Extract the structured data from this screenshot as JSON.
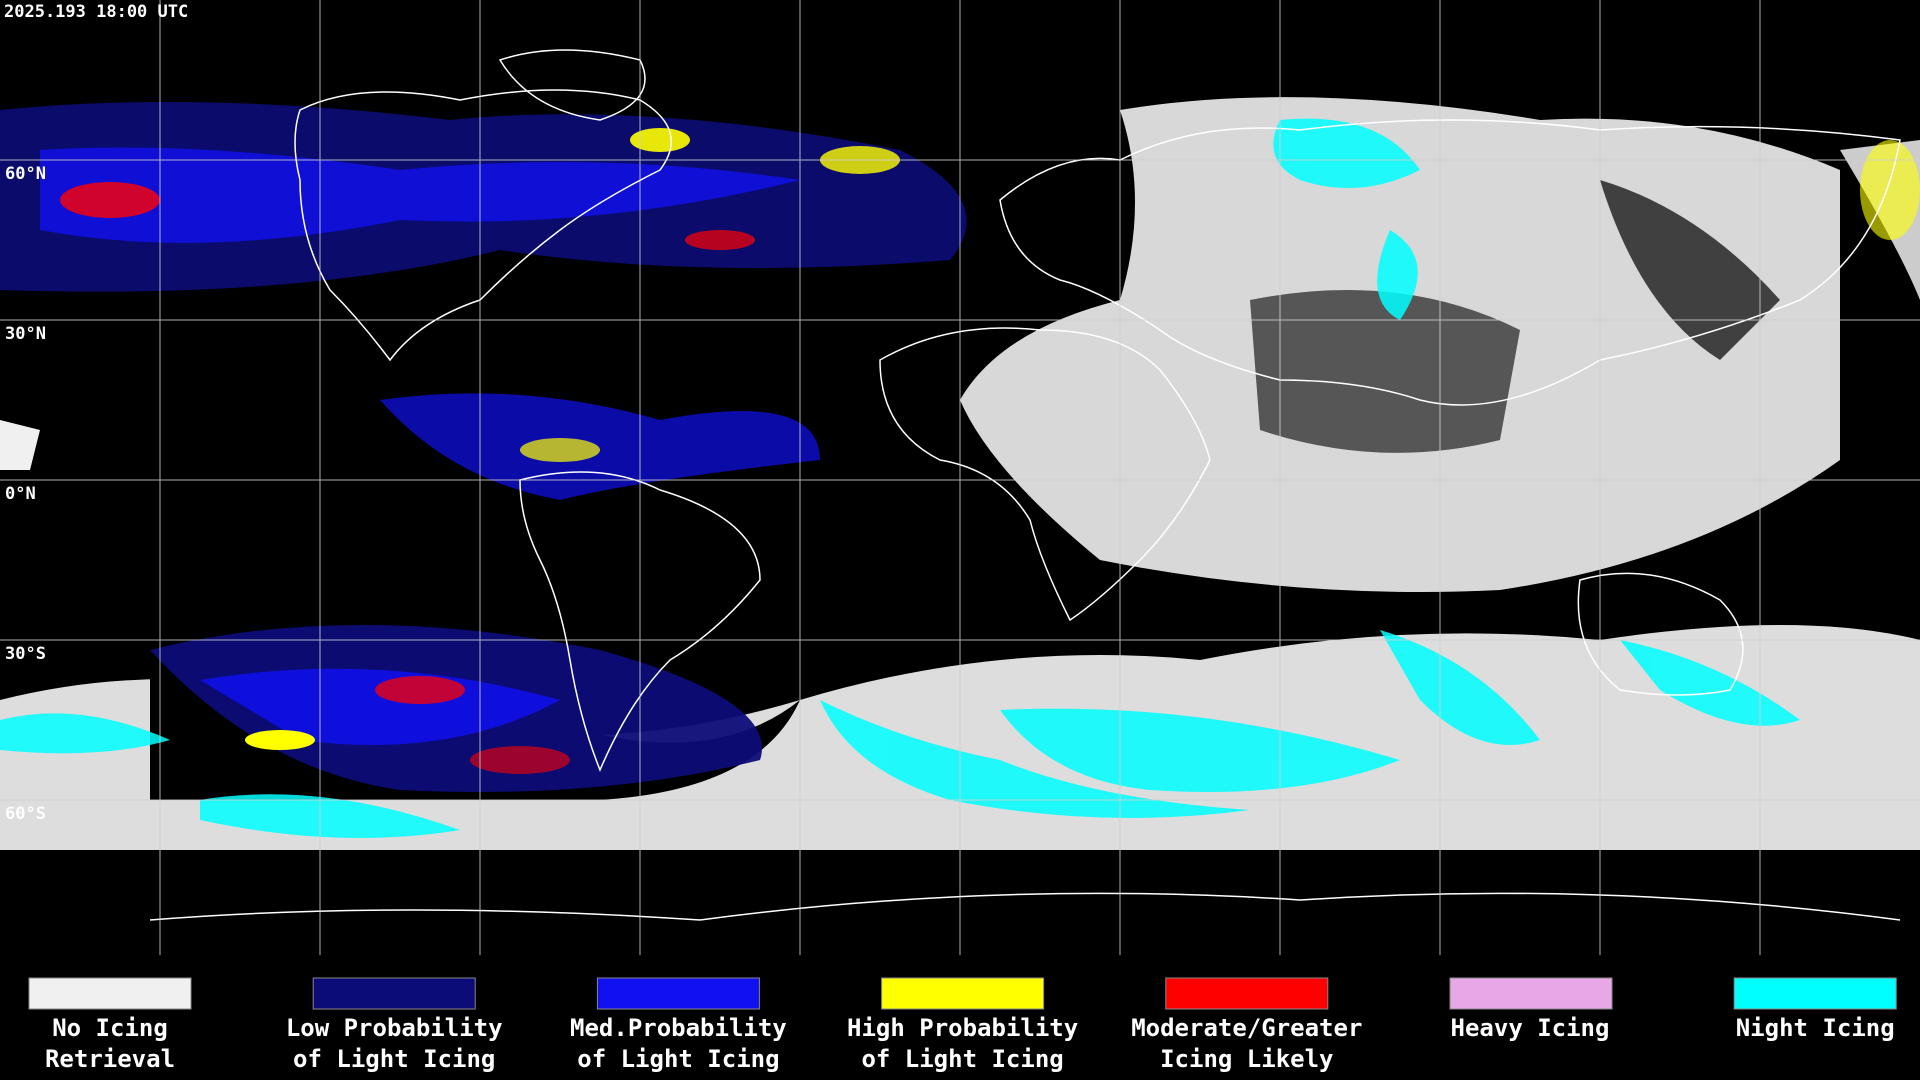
{
  "timestamp": "2025.193 18:00 UTC",
  "latitude_labels": [
    "60°N",
    "30°N",
    "0°N",
    "30°S",
    "60°S"
  ],
  "legend": [
    {
      "label": [
        "No Icing",
        "Retrieval"
      ],
      "color": "#f0f0f0"
    },
    {
      "label": [
        "Low Probability",
        "of Light Icing"
      ],
      "color": "#0c0c78"
    },
    {
      "label": [
        "Med.Probability",
        "of Light Icing"
      ],
      "color": "#1010f0"
    },
    {
      "label": [
        "High Probability",
        "of Light Icing"
      ],
      "color": "#ffff00"
    },
    {
      "label": [
        "Moderate/Greater",
        "Icing Likely"
      ],
      "color": "#ff0000"
    },
    {
      "label": [
        "Heavy Icing"
      ],
      "color": "#e8a8e8"
    },
    {
      "label": [
        "Night Icing"
      ],
      "color": "#00ffff"
    }
  ]
}
